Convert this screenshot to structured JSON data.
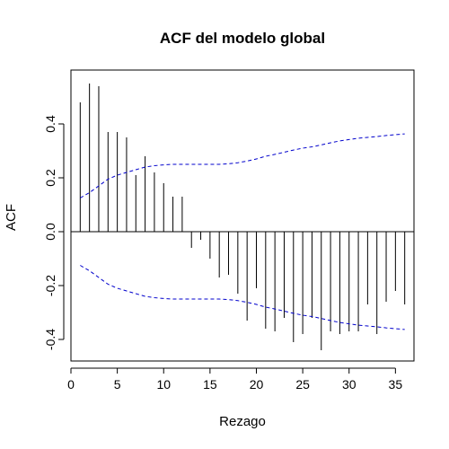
{
  "chart_data": {
    "type": "bar",
    "title": "ACF del modelo global",
    "xlabel": "Rezago",
    "ylabel": "ACF",
    "xlim": [
      0,
      37
    ],
    "ylim": [
      -0.48,
      0.6
    ],
    "x_ticks": [
      0,
      5,
      10,
      15,
      20,
      25,
      30,
      35
    ],
    "x_tick_labels": [
      "0",
      "5",
      "10",
      "15",
      "20",
      "25",
      "30",
      "35"
    ],
    "y_ticks": [
      -0.4,
      -0.2,
      0.0,
      0.2,
      0.4
    ],
    "y_tick_labels": [
      "-0.4",
      "-0.2",
      "0.0",
      "0.2",
      "0.4"
    ],
    "grid": false,
    "zero_line": true,
    "series": [
      {
        "lags": [
          1,
          2,
          3,
          4,
          5,
          6,
          7,
          8,
          9,
          10,
          11,
          12,
          13,
          14,
          15,
          16,
          17,
          18,
          19,
          20,
          21,
          22,
          23,
          24,
          25,
          26,
          27,
          28,
          29,
          30,
          31,
          32,
          33,
          34,
          35,
          36
        ],
        "values": [
          0.48,
          0.55,
          0.54,
          0.37,
          0.37,
          0.35,
          0.21,
          0.28,
          0.22,
          0.18,
          0.13,
          0.13,
          -0.06,
          -0.03,
          -0.1,
          -0.17,
          -0.16,
          -0.23,
          -0.33,
          -0.21,
          -0.36,
          -0.37,
          -0.32,
          -0.41,
          -0.38,
          -0.32,
          -0.44,
          -0.37,
          -0.38,
          -0.37,
          -0.37,
          -0.27,
          -0.38,
          -0.26,
          -0.22,
          -0.27
        ],
        "color": "#000000"
      }
    ],
    "confidence_bands": {
      "color": "#0000cc",
      "style": "dashed",
      "lags": [
        1,
        2,
        3,
        4,
        5,
        6,
        7,
        8,
        9,
        10,
        11,
        12,
        13,
        14,
        15,
        16,
        17,
        18,
        19,
        20,
        21,
        22,
        23,
        24,
        25,
        26,
        27,
        28,
        29,
        30,
        31,
        32,
        33,
        34,
        35,
        36
      ],
      "upper": [
        0.125,
        0.145,
        0.17,
        0.195,
        0.21,
        0.22,
        0.23,
        0.24,
        0.245,
        0.248,
        0.25,
        0.25,
        0.25,
        0.25,
        0.25,
        0.25,
        0.252,
        0.256,
        0.262,
        0.27,
        0.28,
        0.287,
        0.295,
        0.303,
        0.31,
        0.315,
        0.322,
        0.33,
        0.337,
        0.342,
        0.347,
        0.35,
        0.353,
        0.357,
        0.36,
        0.363
      ],
      "lower": [
        -0.125,
        -0.145,
        -0.17,
        -0.195,
        -0.21,
        -0.22,
        -0.23,
        -0.24,
        -0.245,
        -0.248,
        -0.25,
        -0.25,
        -0.25,
        -0.25,
        -0.25,
        -0.25,
        -0.252,
        -0.256,
        -0.262,
        -0.27,
        -0.28,
        -0.287,
        -0.295,
        -0.303,
        -0.31,
        -0.315,
        -0.322,
        -0.33,
        -0.337,
        -0.342,
        -0.347,
        -0.35,
        -0.353,
        -0.357,
        -0.36,
        -0.363
      ]
    }
  }
}
